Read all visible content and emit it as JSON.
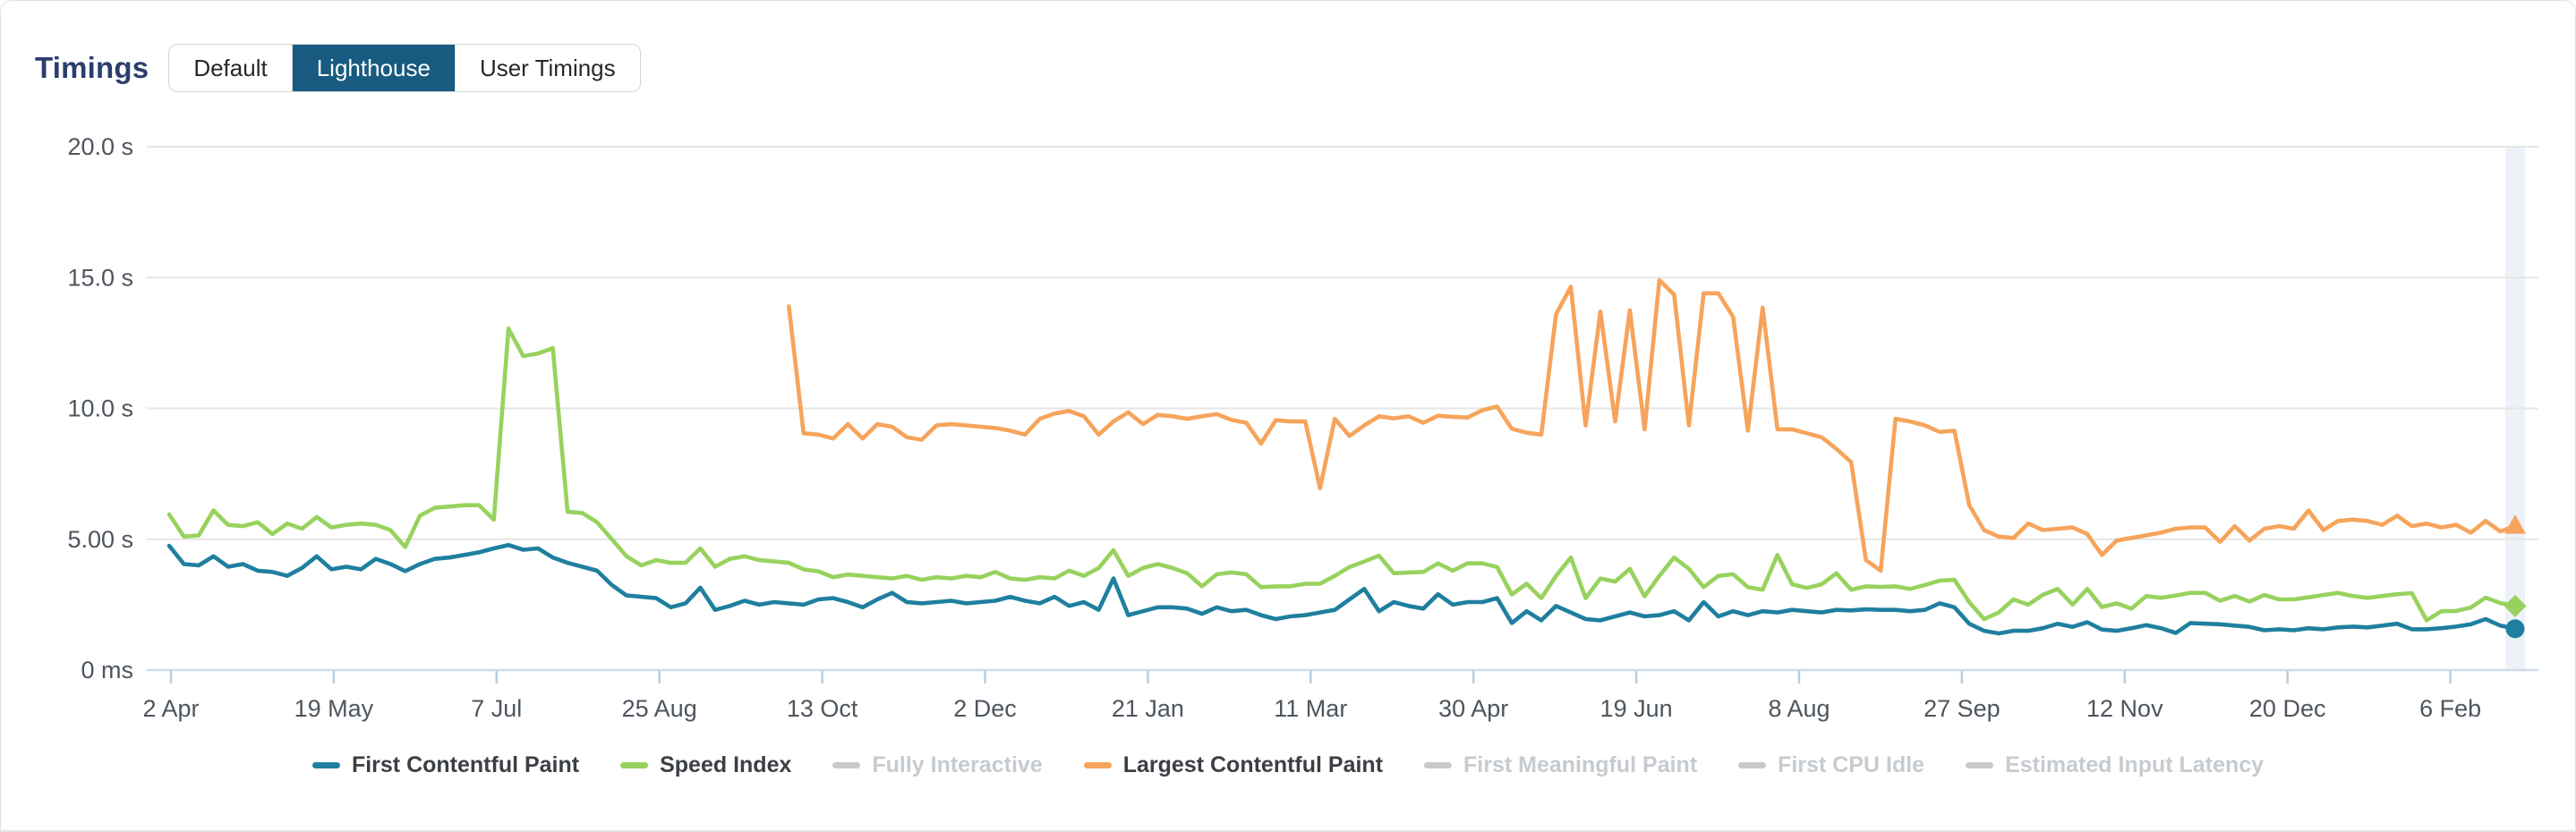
{
  "header": {
    "title": "Timings",
    "tabs": [
      {
        "label": "Default",
        "selected": false
      },
      {
        "label": "Lighthouse",
        "selected": true
      },
      {
        "label": "User Timings",
        "selected": false
      }
    ]
  },
  "colors": {
    "selected_tab_bg": "#185a80",
    "title_text": "#2c3e6d",
    "fcp": "#1f7f9f",
    "speed_index": "#98d25e",
    "lcp": "#f6a45c",
    "disabled_swatch": "#c9c9c9",
    "grid_line": "#e6e6e6",
    "axis_line": "#cfdce8",
    "tick_mark": "#b9cede",
    "axis_label": "#4d555e",
    "highlight_band": "#ecf2f8"
  },
  "legend": {
    "items": [
      {
        "label": "First Contentful Paint",
        "color_key": "fcp",
        "disabled": false
      },
      {
        "label": "Speed Index",
        "color_key": "speed_index",
        "disabled": false
      },
      {
        "label": "Fully Interactive",
        "color_key": "disabled_swatch",
        "disabled": true
      },
      {
        "label": "Largest Contentful Paint",
        "color_key": "lcp",
        "disabled": false
      },
      {
        "label": "First Meaningful Paint",
        "color_key": "disabled_swatch",
        "disabled": true
      },
      {
        "label": "First CPU Idle",
        "color_key": "disabled_swatch",
        "disabled": true
      },
      {
        "label": "Estimated Input Latency",
        "color_key": "disabled_swatch",
        "disabled": true
      }
    ]
  },
  "chart_data": {
    "type": "line",
    "title": "Timings",
    "unit": "seconds",
    "ylim": [
      0,
      20
    ],
    "grid": true,
    "legend_position": "bottom",
    "y_ticks": [
      {
        "v": 0,
        "label": "0 ms"
      },
      {
        "v": 5,
        "label": "5.00 s"
      },
      {
        "v": 10,
        "label": "10.0 s"
      },
      {
        "v": 15,
        "label": "15.0 s"
      },
      {
        "v": 20,
        "label": "20.0 s"
      }
    ],
    "x_tick_labels": [
      "2 Apr",
      "19 May",
      "7 Jul",
      "25 Aug",
      "13 Oct",
      "2 Dec",
      "21 Jan",
      "11 Mar",
      "30 Apr",
      "19 Jun",
      "8 Aug",
      "27 Sep",
      "12 Nov",
      "20 Dec",
      "6 Feb"
    ],
    "highlight_last_point": true,
    "series": [
      {
        "name": "First Contentful Paint",
        "color_key": "fcp",
        "marker": "circle",
        "values": [
          4.75,
          4.05,
          4.0,
          4.35,
          3.95,
          4.05,
          3.8,
          3.75,
          3.6,
          3.9,
          4.35,
          3.85,
          3.95,
          3.85,
          4.25,
          4.05,
          3.78,
          4.05,
          4.25,
          4.3,
          4.4,
          4.5,
          4.65,
          4.78,
          4.6,
          4.65,
          4.3,
          4.1,
          3.95,
          3.8,
          3.25,
          2.85,
          2.8,
          2.75,
          2.4,
          2.55,
          3.15,
          2.3,
          2.45,
          2.65,
          2.5,
          2.6,
          2.55,
          2.5,
          2.7,
          2.75,
          2.6,
          2.4,
          2.7,
          2.95,
          2.6,
          2.55,
          2.6,
          2.65,
          2.55,
          2.6,
          2.65,
          2.8,
          2.65,
          2.55,
          2.8,
          2.45,
          2.6,
          2.3,
          3.5,
          2.1,
          2.25,
          2.4,
          2.4,
          2.35,
          2.15,
          2.4,
          2.25,
          2.3,
          2.1,
          1.95,
          2.05,
          2.1,
          2.2,
          2.3,
          2.7,
          3.1,
          2.25,
          2.6,
          2.45,
          2.35,
          2.9,
          2.5,
          2.6,
          2.6,
          2.75,
          1.8,
          2.25,
          1.9,
          2.45,
          2.2,
          1.95,
          1.9,
          2.05,
          2.2,
          2.05,
          2.1,
          2.25,
          1.9,
          2.6,
          2.05,
          2.25,
          2.1,
          2.25,
          2.2,
          2.3,
          2.25,
          2.2,
          2.3,
          2.28,
          2.32,
          2.3,
          2.3,
          2.25,
          2.3,
          2.55,
          2.4,
          1.77,
          1.5,
          1.4,
          1.5,
          1.5,
          1.6,
          1.77,
          1.65,
          1.83,
          1.55,
          1.5,
          1.6,
          1.72,
          1.6,
          1.42,
          1.8,
          1.77,
          1.75,
          1.7,
          1.65,
          1.52,
          1.56,
          1.52,
          1.6,
          1.56,
          1.63,
          1.66,
          1.63,
          1.7,
          1.77,
          1.56,
          1.56,
          1.6,
          1.66,
          1.75,
          1.95,
          1.7,
          1.58
        ]
      },
      {
        "name": "Speed Index",
        "color_key": "speed_index",
        "marker": "diamond",
        "values": [
          5.95,
          5.1,
          5.15,
          6.1,
          5.55,
          5.5,
          5.65,
          5.2,
          5.6,
          5.4,
          5.85,
          5.45,
          5.55,
          5.6,
          5.55,
          5.35,
          4.7,
          5.9,
          6.2,
          6.25,
          6.3,
          6.3,
          5.75,
          13.05,
          12.0,
          12.1,
          12.3,
          6.05,
          6.0,
          5.65,
          5.0,
          4.35,
          4.0,
          4.2,
          4.1,
          4.1,
          4.65,
          3.95,
          4.25,
          4.35,
          4.2,
          4.15,
          4.1,
          3.85,
          3.77,
          3.55,
          3.65,
          3.6,
          3.55,
          3.5,
          3.6,
          3.45,
          3.55,
          3.5,
          3.6,
          3.55,
          3.75,
          3.5,
          3.45,
          3.55,
          3.5,
          3.8,
          3.6,
          3.9,
          4.58,
          3.6,
          3.9,
          4.05,
          3.9,
          3.7,
          3.2,
          3.66,
          3.73,
          3.66,
          3.17,
          3.2,
          3.2,
          3.3,
          3.3,
          3.6,
          3.94,
          4.15,
          4.37,
          3.7,
          3.73,
          3.75,
          4.08,
          3.8,
          4.08,
          4.08,
          3.94,
          2.89,
          3.3,
          2.75,
          3.6,
          4.3,
          2.75,
          3.5,
          3.38,
          3.87,
          2.82,
          3.6,
          4.3,
          3.87,
          3.17,
          3.6,
          3.66,
          3.17,
          3.07,
          4.4,
          3.28,
          3.14,
          3.28,
          3.7,
          3.07,
          3.2,
          3.18,
          3.2,
          3.1,
          3.25,
          3.42,
          3.45,
          2.6,
          1.95,
          2.2,
          2.7,
          2.5,
          2.88,
          3.1,
          2.5,
          3.1,
          2.41,
          2.55,
          2.35,
          2.83,
          2.76,
          2.85,
          2.95,
          2.95,
          2.65,
          2.83,
          2.62,
          2.87,
          2.7,
          2.7,
          2.78,
          2.87,
          2.95,
          2.83,
          2.76,
          2.83,
          2.9,
          2.94,
          1.9,
          2.25,
          2.26,
          2.39,
          2.77,
          2.56,
          2.45
        ]
      },
      {
        "name": "Largest Contentful Paint",
        "color_key": "lcp",
        "marker": "triangle",
        "values": [
          null,
          null,
          null,
          null,
          null,
          null,
          null,
          null,
          null,
          null,
          null,
          null,
          null,
          null,
          null,
          null,
          null,
          null,
          null,
          null,
          null,
          null,
          null,
          null,
          null,
          null,
          null,
          null,
          null,
          null,
          null,
          null,
          null,
          null,
          null,
          null,
          null,
          null,
          null,
          null,
          null,
          null,
          13.9,
          9.05,
          9.0,
          8.85,
          9.4,
          8.85,
          9.4,
          9.3,
          8.9,
          8.8,
          9.35,
          9.4,
          9.35,
          9.3,
          9.25,
          9.15,
          9.0,
          9.6,
          9.8,
          9.9,
          9.7,
          9.0,
          9.5,
          9.85,
          9.4,
          9.75,
          9.7,
          9.6,
          9.7,
          9.78,
          9.56,
          9.45,
          8.65,
          9.55,
          9.5,
          9.5,
          6.95,
          9.6,
          8.95,
          9.35,
          9.7,
          9.62,
          9.7,
          9.45,
          9.72,
          9.68,
          9.65,
          9.93,
          10.07,
          9.22,
          9.07,
          9.0,
          13.6,
          14.65,
          9.35,
          13.7,
          9.5,
          13.75,
          9.2,
          14.9,
          14.35,
          9.35,
          14.4,
          14.4,
          13.5,
          9.15,
          13.85,
          9.2,
          9.2,
          9.05,
          8.9,
          8.45,
          7.95,
          4.2,
          3.8,
          9.6,
          9.5,
          9.35,
          9.1,
          9.15,
          6.3,
          5.35,
          5.1,
          5.05,
          5.6,
          5.35,
          5.4,
          5.45,
          5.2,
          4.4,
          4.95,
          5.05,
          5.15,
          5.25,
          5.4,
          5.45,
          5.45,
          4.9,
          5.5,
          4.95,
          5.4,
          5.5,
          5.4,
          6.1,
          5.35,
          5.7,
          5.75,
          5.7,
          5.55,
          5.9,
          5.5,
          5.6,
          5.45,
          5.55,
          5.25,
          5.7,
          5.3,
          5.5
        ]
      }
    ]
  }
}
